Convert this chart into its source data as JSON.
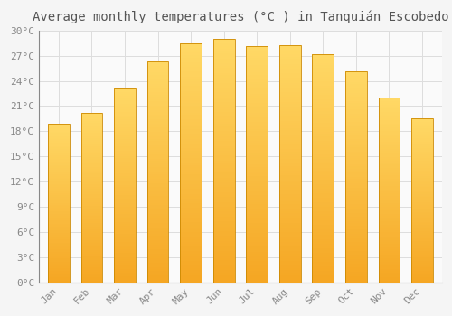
{
  "title": "Average monthly temperatures (°C ) in Tanquián Escobedo",
  "months": [
    "Jan",
    "Feb",
    "Mar",
    "Apr",
    "May",
    "Jun",
    "Jul",
    "Aug",
    "Sep",
    "Oct",
    "Nov",
    "Dec"
  ],
  "temperatures": [
    18.9,
    20.2,
    23.1,
    26.3,
    28.5,
    29.0,
    28.1,
    28.3,
    27.2,
    25.1,
    22.0,
    19.5
  ],
  "bar_color_top": "#FFD966",
  "bar_color_bottom": "#F5A623",
  "bar_edge_color": "#CC8800",
  "ylim": [
    0,
    30
  ],
  "ytick_step": 3,
  "background_color": "#F5F5F5",
  "plot_bg_color": "#FAFAFA",
  "grid_color": "#DDDDDD",
  "title_fontsize": 10,
  "tick_fontsize": 8,
  "title_color": "#555555",
  "tick_color": "#888888"
}
